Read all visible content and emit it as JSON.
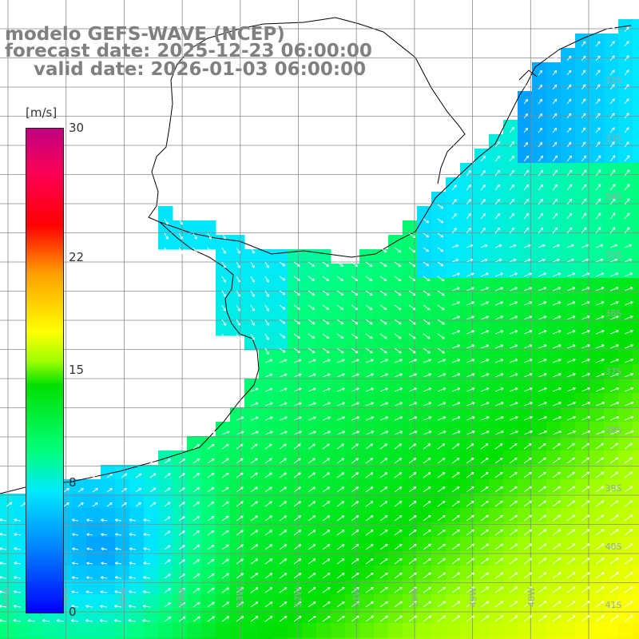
{
  "header": {
    "line1": "modelo GEFS-WAVE (NCEP)",
    "line2": "forecast date: 2025-12-23 06:00:00",
    "line3": "valid date: 2026-01-03 06:00:00"
  },
  "colorbar": {
    "unit": "[m/s]",
    "ticks": [
      {
        "value": 30,
        "label": "30"
      },
      {
        "value": 22,
        "label": "22"
      },
      {
        "value": 15,
        "label": "15"
      },
      {
        "value": 8,
        "label": "8"
      },
      {
        "value": 0,
        "label": "0"
      }
    ],
    "range": [
      0,
      30
    ]
  },
  "map": {
    "lat_labels": [
      "32S",
      "33S",
      "34S",
      "35S",
      "36S",
      "37S",
      "38S",
      "39S",
      "40S",
      "41S"
    ],
    "lon_labels": [
      "57W",
      "56W",
      "55W",
      "54W",
      "53W",
      "52W",
      "51W",
      "50W",
      "49W",
      "48W"
    ],
    "wind_scale_colors": [
      "#0000ff",
      "#00e8ff",
      "#00e000",
      "#ffff00",
      "#ff0000",
      "#c00080"
    ]
  }
}
